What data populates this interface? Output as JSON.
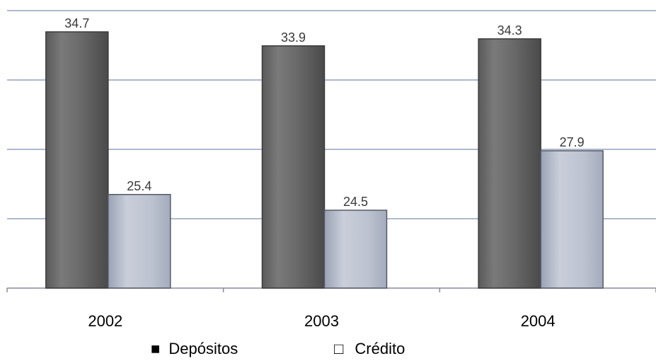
{
  "chart_data": {
    "type": "bar",
    "title": "",
    "xlabel": "",
    "ylabel": "",
    "categories": [
      "2002",
      "2003",
      "2004"
    ],
    "series": [
      {
        "name": "Depósitos",
        "values": [
          34.7,
          33.9,
          34.3
        ],
        "color": "#6b6b6b"
      },
      {
        "name": "Crédito",
        "values": [
          25.4,
          24.5,
          27.9
        ],
        "color": "#b8bfcc"
      }
    ],
    "ylim": [
      20,
      38
    ],
    "grid": true,
    "legend_position": "bottom"
  },
  "legend": {
    "items": [
      {
        "symbol": "■",
        "label": "Depósitos"
      },
      {
        "symbol": "□",
        "label": "Crédito"
      }
    ]
  }
}
